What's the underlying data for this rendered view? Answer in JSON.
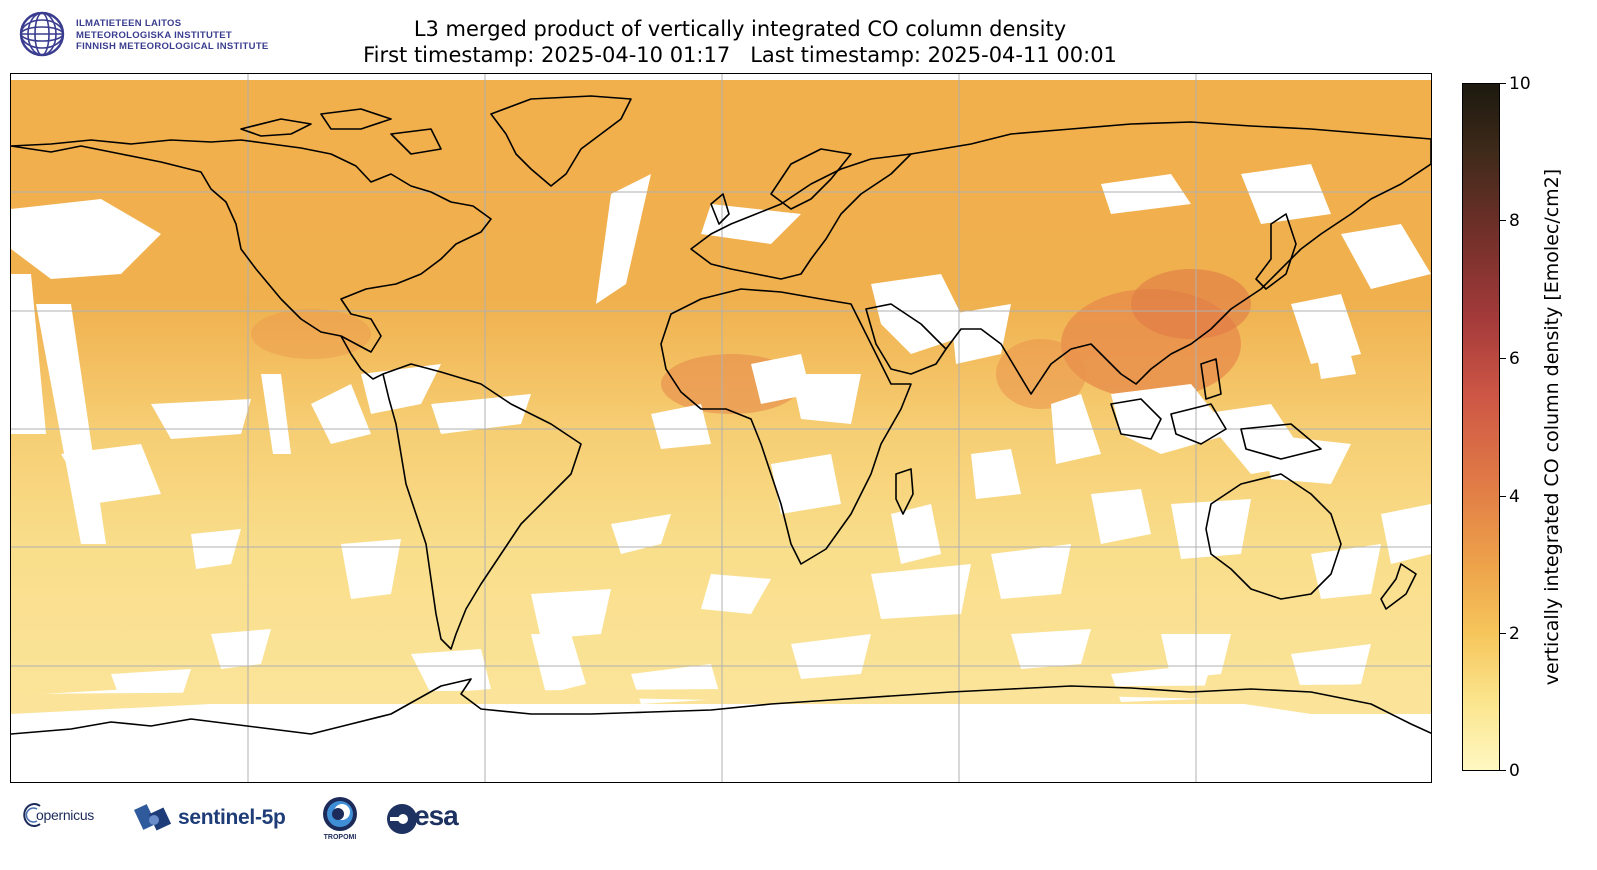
{
  "header": {
    "title_line1": "L3 merged product of vertically integrated CO column density",
    "title_line2": "First timestamp: 2025-04-10 01:17   Last timestamp: 2025-04-11 00:01",
    "institute": {
      "line1": "ILMATIETEEN LAITOS",
      "line2": "METEOROLOGISKA INSTITUTET",
      "line3": "FINNISH METEOROLOGICAL INSTITUTE"
    }
  },
  "colorbar": {
    "label": "vertically integrated CO column density [Emolec/cm2]",
    "min": 0,
    "max": 10,
    "ticks": [
      "0",
      "2",
      "4",
      "6",
      "8",
      "10"
    ],
    "colors": [
      "#fff8c2",
      "#f6c55b",
      "#e07a46",
      "#a33a3a",
      "#3f2a1a",
      "#1c190f"
    ]
  },
  "map": {
    "projection": "plate carree",
    "grid": true,
    "gridlines_lon": 5,
    "gridlines_lat": 5,
    "base_color": "#f3bb55",
    "missing_color": "#ffffff",
    "coastline_color": "#000000"
  },
  "footer": {
    "copernicus": "opernicus",
    "sentinel": "sentinel-5p",
    "tropomi": "TROPOMI",
    "esa": "esa"
  }
}
